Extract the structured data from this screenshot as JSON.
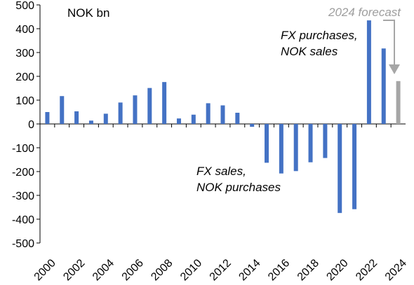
{
  "chart_data": {
    "type": "bar",
    "unit_label": "NOK bn",
    "categories": [
      "2000",
      "2001",
      "2002",
      "2003",
      "2004",
      "2005",
      "2006",
      "2007",
      "2008",
      "2009",
      "2010",
      "2011",
      "2012",
      "2013",
      "2014",
      "2015",
      "2016",
      "2017",
      "2018",
      "2019",
      "2020",
      "2021",
      "2022",
      "2023",
      "2024"
    ],
    "x_tick_labels": [
      "2000",
      "2002",
      "2004",
      "2006",
      "2008",
      "2010",
      "2012",
      "2014",
      "2016",
      "2018",
      "2020",
      "2022",
      "2024"
    ],
    "series": [
      {
        "values": [
          50,
          117,
          53,
          14,
          43,
          90,
          120,
          151,
          176,
          23,
          39,
          87,
          78,
          47,
          -12,
          -163,
          -208,
          -198,
          -161,
          -143,
          -374,
          -358,
          435,
          317,
          180
        ],
        "color": "#4472c4",
        "forecast_color": "#a6a6a6",
        "forecast_categories": [
          "2024"
        ]
      }
    ],
    "ylim": [
      -500,
      500
    ],
    "y_ticks": [
      500,
      400,
      300,
      200,
      100,
      0,
      -100,
      -200,
      -300,
      -400,
      -500
    ],
    "y_tick_labels": [
      "500",
      "400",
      "300",
      "200",
      "100",
      "0",
      "-100",
      "-200",
      "-300",
      "-400",
      "-500"
    ],
    "grid": false,
    "annotations": {
      "purchases_line1": "FX purchases,",
      "purchases_line2": "NOK sales",
      "sales_line1": "FX sales,",
      "sales_line2": "NOK purchases",
      "forecast": "2024 forecast"
    }
  }
}
